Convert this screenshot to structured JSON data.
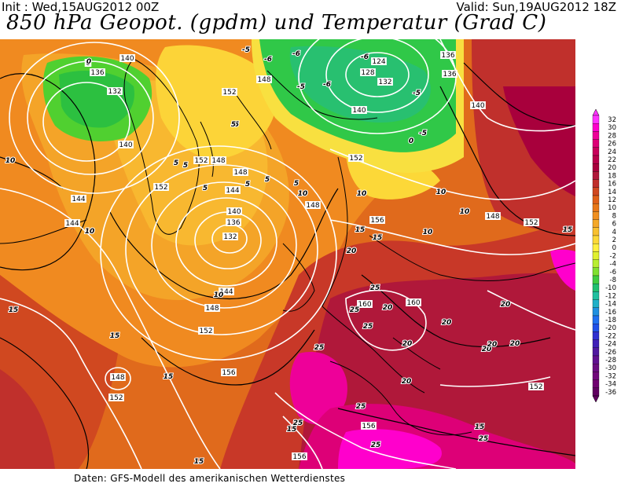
{
  "header": {
    "init": "Init : Wed,15AUG2012 00Z",
    "valid": "Valid: Sun,19AUG2012 18Z",
    "title": "850 hPa Geopot. (gpdm) und Temperatur (Grad C)"
  },
  "footer": "Daten: GFS-Modell des amerikanischen Wetterdienstes",
  "legend": {
    "values": [
      "32",
      "30",
      "28",
      "26",
      "24",
      "22",
      "20",
      "18",
      "16",
      "14",
      "12",
      "10",
      "8",
      "6",
      "4",
      "2",
      "0",
      "-2",
      "-4",
      "-6",
      "-8",
      "-10",
      "-12",
      "-14",
      "-16",
      "-18",
      "-20",
      "-22",
      "-24",
      "-26",
      "-28",
      "-30",
      "-32",
      "-34",
      "-36"
    ],
    "colors": [
      "#ff33ff",
      "#ff00cc",
      "#ee0099",
      "#dd0077",
      "#c8005a",
      "#b8004a",
      "#a8003c",
      "#b0183a",
      "#c0302c",
      "#d04820",
      "#e06018",
      "#e87818",
      "#f09020",
      "#f4a828",
      "#f8c030",
      "#fcd838",
      "#fff040",
      "#e0f030",
      "#b8ee30",
      "#80e030",
      "#40cc40",
      "#20c070",
      "#20c0a0",
      "#20b0c8",
      "#2090e0",
      "#2070f0",
      "#2050e8",
      "#3030d0",
      "#4020b8",
      "#5018a0",
      "#601090",
      "#6a0c80",
      "#70087a",
      "#700070",
      "#600060"
    ]
  },
  "map_labels": {
    "geopotential": [
      "140",
      "136",
      "132",
      "128",
      "124",
      "148",
      "152",
      "156",
      "160",
      "144"
    ],
    "temperature": [
      "0",
      "-5",
      "-6",
      "5",
      "10",
      "15",
      "20",
      "25",
      "-2"
    ]
  },
  "placed_labels": [
    {
      "t": "140"
    },
    {
      "t": "136"
    },
    {
      "t": "132"
    },
    {
      "t": "140"
    },
    {
      "t": "0"
    },
    {
      "t": "124"
    },
    {
      "t": "128"
    },
    {
      "t": "132"
    },
    {
      "t": "136"
    },
    {
      "t": "136"
    },
    {
      "t": "140"
    },
    {
      "t": "140"
    },
    {
      "t": "148"
    },
    {
      "t": "152"
    },
    {
      "t": "148"
    },
    {
      "t": "152"
    },
    {
      "t": "152"
    },
    {
      "t": "148"
    },
    {
      "t": "144"
    },
    {
      "t": "140"
    },
    {
      "t": "136"
    },
    {
      "t": "132"
    },
    {
      "t": "144"
    },
    {
      "t": "148"
    },
    {
      "t": "152"
    },
    {
      "t": "156"
    },
    {
      "t": "156"
    },
    {
      "t": "160"
    },
    {
      "t": "160"
    },
    {
      "t": "148"
    },
    {
      "t": "152"
    },
    {
      "t": "156"
    },
    {
      "t": "156"
    },
    {
      "t": "152"
    },
    {
      "t": "148"
    },
    {
      "t": "144"
    },
    {
      "t": "144"
    },
    {
      "t": "152"
    },
    {
      "t": "148"
    },
    {
      "t": "152"
    },
    {
      "t": "0"
    },
    {
      "t": "-5"
    },
    {
      "t": "-6"
    },
    {
      "t": "-6"
    },
    {
      "t": "-5"
    },
    {
      "t": "-6"
    },
    {
      "t": "-6"
    },
    {
      "t": "-5"
    },
    {
      "t": "-5"
    },
    {
      "t": "0"
    },
    {
      "t": "5"
    },
    {
      "t": "5"
    },
    {
      "t": "5"
    },
    {
      "t": "5"
    },
    {
      "t": "5"
    },
    {
      "t": "5"
    },
    {
      "t": "5"
    },
    {
      "t": "5"
    },
    {
      "t": "10"
    },
    {
      "t": "10"
    },
    {
      "t": "10"
    },
    {
      "t": "10"
    },
    {
      "t": "10"
    },
    {
      "t": "10"
    },
    {
      "t": "10"
    },
    {
      "t": "10"
    },
    {
      "t": "15"
    },
    {
      "t": "15"
    },
    {
      "t": "15"
    },
    {
      "t": "15"
    },
    {
      "t": "15"
    },
    {
      "t": "15"
    },
    {
      "t": "15"
    },
    {
      "t": "15"
    },
    {
      "t": "15"
    },
    {
      "t": "20"
    },
    {
      "t": "20"
    },
    {
      "t": "20"
    },
    {
      "t": "20"
    },
    {
      "t": "20"
    },
    {
      "t": "20"
    },
    {
      "t": "20"
    },
    {
      "t": "20"
    },
    {
      "t": "20"
    },
    {
      "t": "25"
    },
    {
      "t": "25"
    },
    {
      "t": "25"
    },
    {
      "t": "25"
    },
    {
      "t": "25"
    },
    {
      "t": "25"
    },
    {
      "t": "25"
    },
    {
      "t": "25"
    }
  ]
}
